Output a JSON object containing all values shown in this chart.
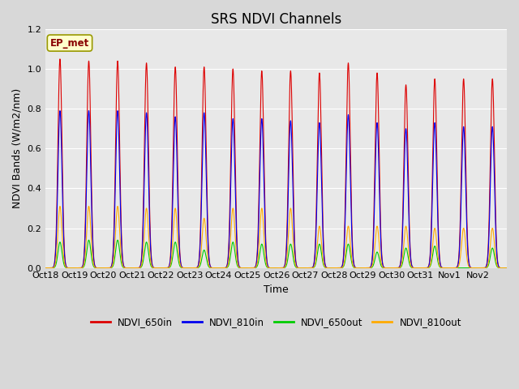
{
  "title": "SRS NDVI Channels",
  "ylabel": "NDVI Bands (W/m2/nm)",
  "xlabel": "Time",
  "annotation": "EP_met",
  "ylim": [
    0.0,
    1.2
  ],
  "num_days": 16,
  "day_labels": [
    "Oct 18",
    "Oct 19",
    "Oct 20",
    "Oct 21",
    "Oct 22",
    "Oct 23",
    "Oct 24",
    "Oct 25",
    "Oct 26",
    "Oct 27",
    "Oct 28",
    "Oct 29",
    "Oct 30",
    "Oct 31",
    "Nov 1",
    "Nov 2"
  ],
  "series": {
    "NDVI_650in": {
      "color": "#dd0000",
      "peaks": [
        1.05,
        1.04,
        1.04,
        1.03,
        1.01,
        1.01,
        1.0,
        0.99,
        0.99,
        0.98,
        1.03,
        0.98,
        0.92,
        0.95,
        0.95,
        0.95
      ]
    },
    "NDVI_810in": {
      "color": "#0000ee",
      "peaks": [
        0.79,
        0.79,
        0.79,
        0.78,
        0.76,
        0.78,
        0.75,
        0.75,
        0.74,
        0.73,
        0.77,
        0.73,
        0.7,
        0.73,
        0.71,
        0.71
      ]
    },
    "NDVI_650out": {
      "color": "#00cc00",
      "peaks": [
        0.13,
        0.14,
        0.14,
        0.13,
        0.13,
        0.09,
        0.13,
        0.12,
        0.12,
        0.12,
        0.12,
        0.08,
        0.1,
        0.11,
        0.0,
        0.1
      ]
    },
    "NDVI_810out": {
      "color": "#ffaa00",
      "peaks": [
        0.31,
        0.31,
        0.31,
        0.3,
        0.3,
        0.25,
        0.3,
        0.3,
        0.3,
        0.21,
        0.21,
        0.21,
        0.21,
        0.2,
        0.2,
        0.2
      ]
    }
  },
  "peak_sigma": 0.07,
  "background_color": "#d8d8d8",
  "plot_bg_color": "#e8e8e8",
  "grid_color": "#ffffff",
  "title_fontsize": 12,
  "axis_fontsize": 9,
  "tick_fontsize": 8
}
